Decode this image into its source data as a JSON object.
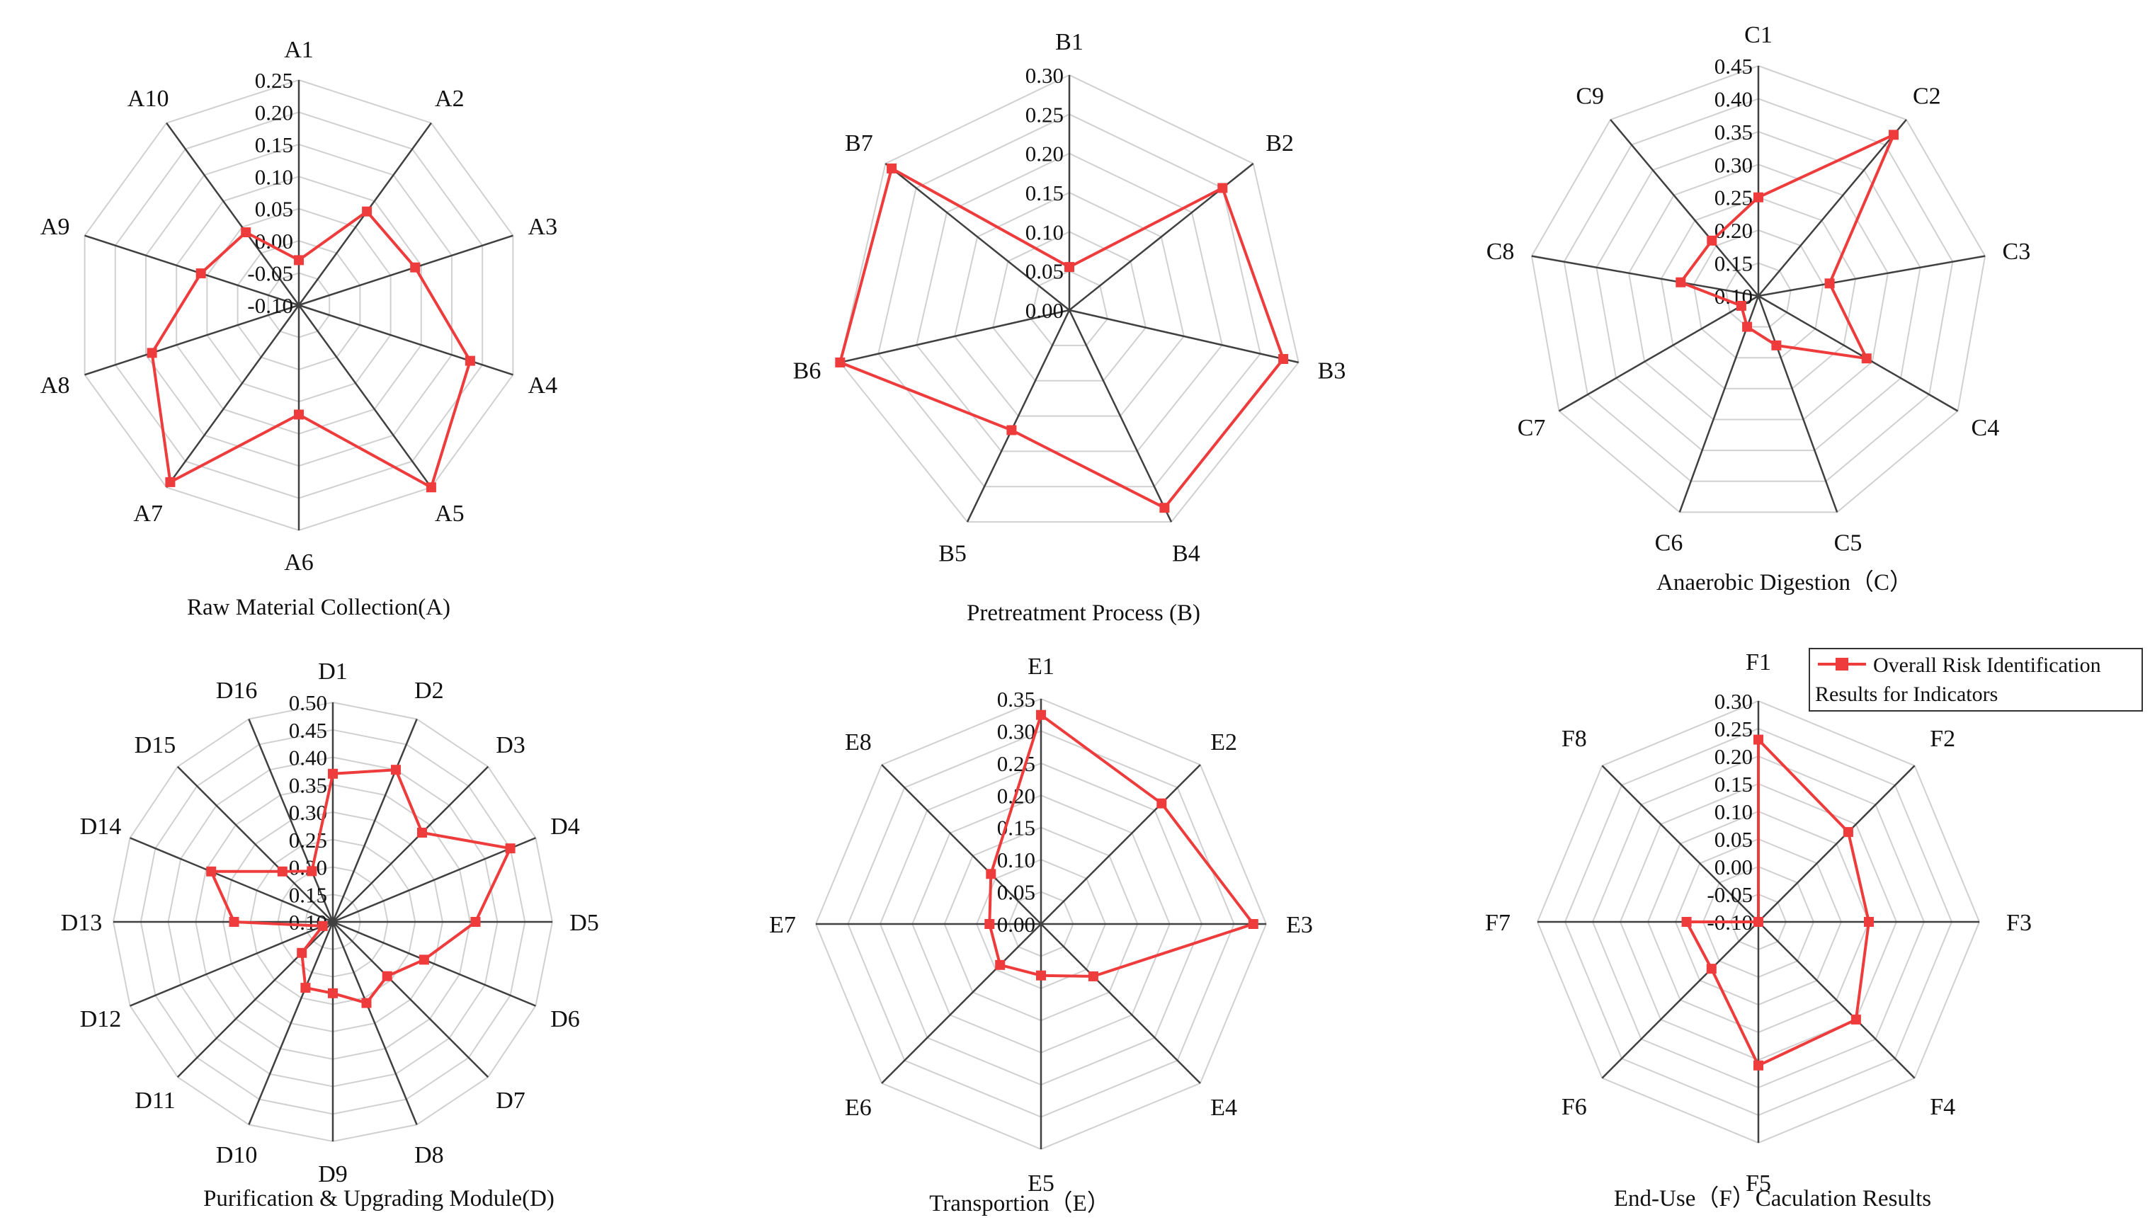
{
  "figure": {
    "legend": {
      "line1": "Overall Risk Identification",
      "line2": "Results for Indicators",
      "color": "#ee3b3b"
    }
  },
  "chart_data": [
    {
      "type": "radar",
      "title": "Raw Material Collection(A)",
      "categories": [
        "A1",
        "A2",
        "A3",
        "A4",
        "A5",
        "A6",
        "A7",
        "A8",
        "A9",
        "A10"
      ],
      "rlim": [
        -0.1,
        0.25
      ],
      "ticks": [
        "0.25",
        "0.20",
        "0.15",
        "0.10",
        "0.05",
        "0.00",
        "-0.05",
        "-0.10"
      ],
      "series": [
        {
          "name": "Overall Risk Identification Results for Indicators",
          "values": [
            -0.03,
            0.08,
            0.09,
            0.18,
            0.25,
            0.07,
            0.24,
            0.14,
            0.06,
            0.04
          ]
        }
      ]
    },
    {
      "type": "radar",
      "title": "Pretreatment Process (B)",
      "categories": [
        "B1",
        "B2",
        "B3",
        "B4",
        "B5",
        "B6",
        "B7"
      ],
      "rlim": [
        0.0,
        0.3
      ],
      "ticks": [
        "0.30",
        "0.25",
        "0.20",
        "0.15",
        "0.10",
        "0.05",
        "0.00"
      ],
      "series": [
        {
          "name": "Overall Risk Identification Results for Indicators",
          "values": [
            0.055,
            0.25,
            0.28,
            0.28,
            0.17,
            0.3,
            0.29
          ]
        }
      ]
    },
    {
      "type": "radar",
      "title": "Anaerobic Digestion（C）",
      "categories": [
        "C1",
        "C2",
        "C3",
        "C4",
        "C5",
        "C6",
        "C7",
        "C8",
        "C9"
      ],
      "rlim": [
        0.1,
        0.45
      ],
      "ticks": [
        "0.45",
        "0.40",
        "0.35",
        "0.30",
        "0.25",
        "0.20",
        "0.15",
        "0.10"
      ],
      "series": [
        {
          "name": "Overall Risk Identification Results for Indicators",
          "values": [
            0.25,
            0.42,
            0.21,
            0.29,
            0.18,
            0.15,
            0.13,
            0.22,
            0.21
          ]
        }
      ]
    },
    {
      "type": "radar",
      "title": "Purification & Upgrading Module(D)",
      "categories": [
        "D1",
        "D2",
        "D3",
        "D4",
        "D5",
        "D6",
        "D7",
        "D8",
        "D9",
        "D10",
        "D11",
        "D12",
        "D13",
        "D14",
        "D15",
        "D16"
      ],
      "rlim": [
        0.1,
        0.5
      ],
      "ticks": [
        "0.50",
        "0.45",
        "0.40",
        "0.35",
        "0.30",
        "0.25",
        "0.20",
        "0.15",
        "0.10"
      ],
      "series": [
        {
          "name": "Overall Risk Identification Results for Indicators",
          "values": [
            0.37,
            0.4,
            0.33,
            0.45,
            0.36,
            0.28,
            0.24,
            0.26,
            0.23,
            0.23,
            0.18,
            0.12,
            0.28,
            0.34,
            0.23,
            0.2
          ]
        }
      ]
    },
    {
      "type": "radar",
      "title": "Transportion（E）",
      "categories": [
        "E1",
        "E2",
        "E3",
        "E4",
        "E5",
        "E6",
        "E7",
        "E8"
      ],
      "rlim": [
        0.0,
        0.35
      ],
      "ticks": [
        "0.35",
        "0.30",
        "0.25",
        "0.20",
        "0.15",
        "0.10",
        "0.05",
        "0.00"
      ],
      "series": [
        {
          "name": "Overall Risk Identification Results for Indicators",
          "values": [
            0.325,
            0.265,
            0.33,
            0.115,
            0.08,
            0.09,
            0.08,
            0.11
          ]
        }
      ]
    },
    {
      "type": "radar",
      "title": "End-Use（F）Caculation Results",
      "categories": [
        "F1",
        "F2",
        "F3",
        "F4",
        "F5",
        "F6",
        "F7",
        "F8"
      ],
      "rlim": [
        -0.1,
        0.3
      ],
      "ticks": [
        "0.30",
        "0.25",
        "0.20",
        "0.15",
        "0.10",
        "0.05",
        "0.00",
        "-0.05",
        "-0.10"
      ],
      "series": [
        {
          "name": "Overall Risk Identification Results for Indicators",
          "values": [
            0.23,
            0.13,
            0.1,
            0.15,
            0.16,
            0.02,
            0.03,
            -0.1
          ]
        }
      ]
    }
  ]
}
